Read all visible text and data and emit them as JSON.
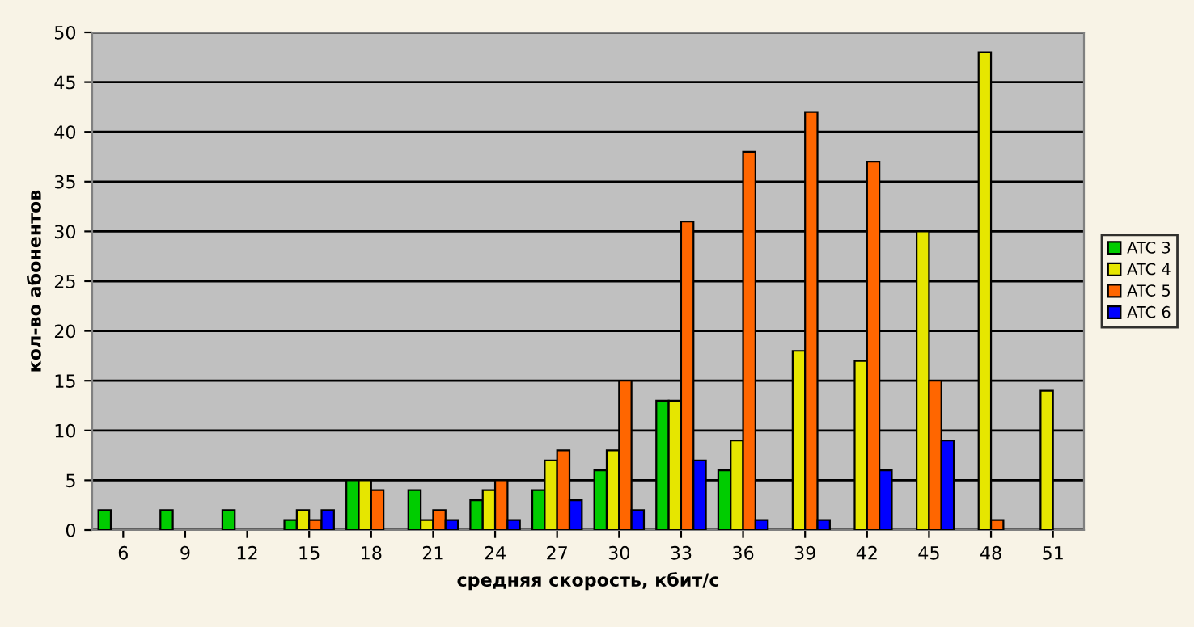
{
  "chart_data": {
    "type": "bar",
    "xlabel": "средняя скорость, кбит/с",
    "ylabel": "кол-во абонентов",
    "categories": [
      "6",
      "9",
      "12",
      "15",
      "18",
      "21",
      "24",
      "27",
      "30",
      "33",
      "36",
      "39",
      "42",
      "45",
      "48",
      "51"
    ],
    "series": [
      {
        "name": "ATC 3",
        "color": "#00cc00",
        "values": [
          2,
          2,
          2,
          1,
          5,
          4,
          3,
          4,
          6,
          13,
          6,
          null,
          null,
          null,
          null,
          null
        ]
      },
      {
        "name": "ATC 4",
        "color": "#e6e600",
        "values": [
          null,
          null,
          null,
          2,
          5,
          1,
          4,
          7,
          8,
          13,
          9,
          18,
          17,
          30,
          48,
          14
        ]
      },
      {
        "name": "ATC 5",
        "color": "#ff6600",
        "values": [
          null,
          null,
          null,
          1,
          4,
          2,
          5,
          8,
          15,
          31,
          38,
          42,
          37,
          15,
          1,
          null
        ]
      },
      {
        "name": "ATC 6",
        "color": "#0000ff",
        "values": [
          null,
          null,
          null,
          2,
          null,
          1,
          1,
          3,
          2,
          7,
          1,
          1,
          6,
          9,
          null,
          null
        ]
      }
    ],
    "ylim": [
      0,
      50
    ],
    "yticks": [
      0,
      5,
      10,
      15,
      20,
      25,
      30,
      35,
      40,
      45,
      50
    ],
    "grid": "y",
    "legend": "right"
  }
}
